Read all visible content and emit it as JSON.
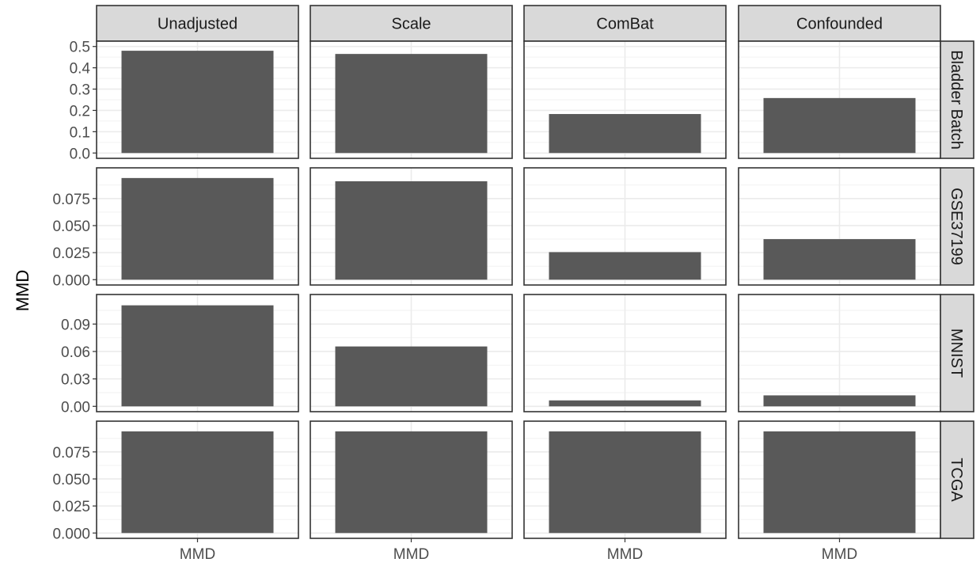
{
  "chart_data": {
    "type": "bar",
    "layout": "facet_grid",
    "ylabel": "MMD",
    "xlabel": "",
    "columns": [
      "Unadjusted",
      "Scale",
      "ComBat",
      "Confounded"
    ],
    "rows": [
      {
        "name": "Bladder Batch",
        "ylim": [
          0,
          0.5
        ],
        "ticks": [
          0,
          0.1,
          0.2,
          0.3,
          0.4,
          0.5
        ],
        "tick_labels": [
          "0.0",
          "0.1",
          "0.2",
          "0.3",
          "0.4",
          "0.5"
        ],
        "values": [
          0.48,
          0.465,
          0.183,
          0.258
        ]
      },
      {
        "name": "GSE37199",
        "ylim": [
          0,
          0.0985
        ],
        "ticks": [
          0,
          0.025,
          0.05,
          0.075
        ],
        "tick_labels": [
          "0.000",
          "0.025",
          "0.050",
          "0.075"
        ],
        "values": [
          0.094,
          0.091,
          0.0255,
          0.0375
        ]
      },
      {
        "name": "MNIST",
        "ylim": [
          0,
          0.1165
        ],
        "ticks": [
          0,
          0.03,
          0.06,
          0.09
        ],
        "tick_labels": [
          "0.00",
          "0.03",
          "0.06",
          "0.09"
        ],
        "values": [
          0.1105,
          0.0655,
          0.0065,
          0.012
        ]
      },
      {
        "name": "TCGA",
        "ylim": [
          0,
          0.0985
        ],
        "ticks": [
          0,
          0.025,
          0.05,
          0.075
        ],
        "tick_labels": [
          "0.000",
          "0.025",
          "0.050",
          "0.075"
        ],
        "values": [
          0.094,
          0.094,
          0.094,
          0.094
        ]
      }
    ],
    "x_category": "MMD",
    "grid": true,
    "bar_color": "#595959",
    "strip_fill": "#d9d9d9",
    "grid_color": "#ebebeb",
    "text_color": "#4d4d4d"
  }
}
